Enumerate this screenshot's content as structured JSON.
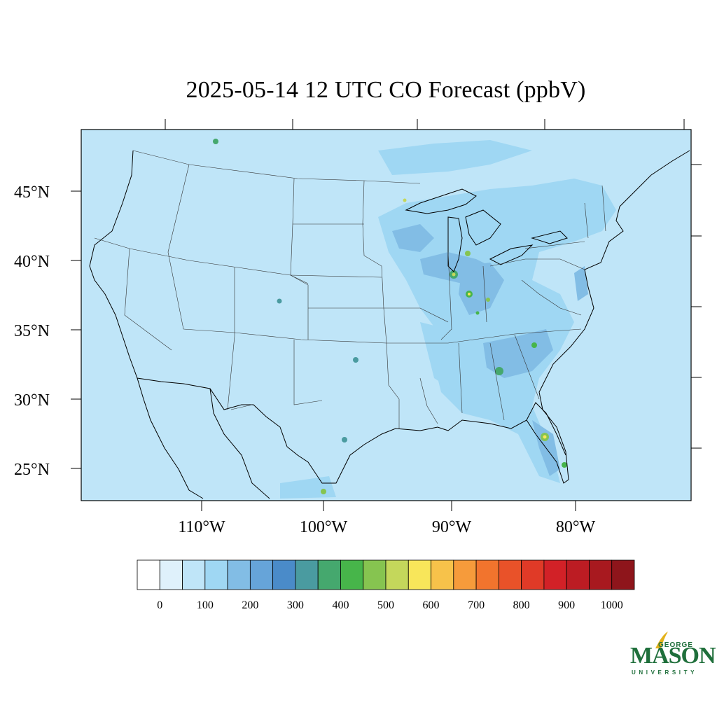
{
  "title": "2025-05-14 12 UTC CO Forecast (ppbV)",
  "lat_labels": [
    "45°N",
    "40°N",
    "35°N",
    "30°N",
    "25°N"
  ],
  "lon_labels": [
    "110°W",
    "100°W",
    "90°W",
    "80°W"
  ],
  "colorbar": {
    "colors": [
      "#ffffff",
      "#dff1fb",
      "#bfe5f8",
      "#9fd7f3",
      "#82bde5",
      "#66a4d9",
      "#4a8bc9",
      "#4a9ba0",
      "#45a86e",
      "#47b54a",
      "#86c450",
      "#c4d75b",
      "#f8e65a",
      "#f7c24a",
      "#f69b3b",
      "#f2742d",
      "#e95229",
      "#e03a27",
      "#d22127",
      "#bc1c23",
      "#a8191f",
      "#8e151b"
    ],
    "tick_labels": [
      "0",
      "100",
      "200",
      "300",
      "400",
      "500",
      "600",
      "700",
      "800",
      "900",
      "1000"
    ]
  },
  "logo": {
    "george": "GEORGE",
    "mason": "MASON",
    "university": "UNIVERSITY"
  },
  "colors": {
    "background_field": "#bfe5f8",
    "enhanced_field": "#9fd7f3",
    "high_field": "#82bde5",
    "logo_green": "#1f6f3b",
    "logo_gold": "#e3b21b"
  }
}
